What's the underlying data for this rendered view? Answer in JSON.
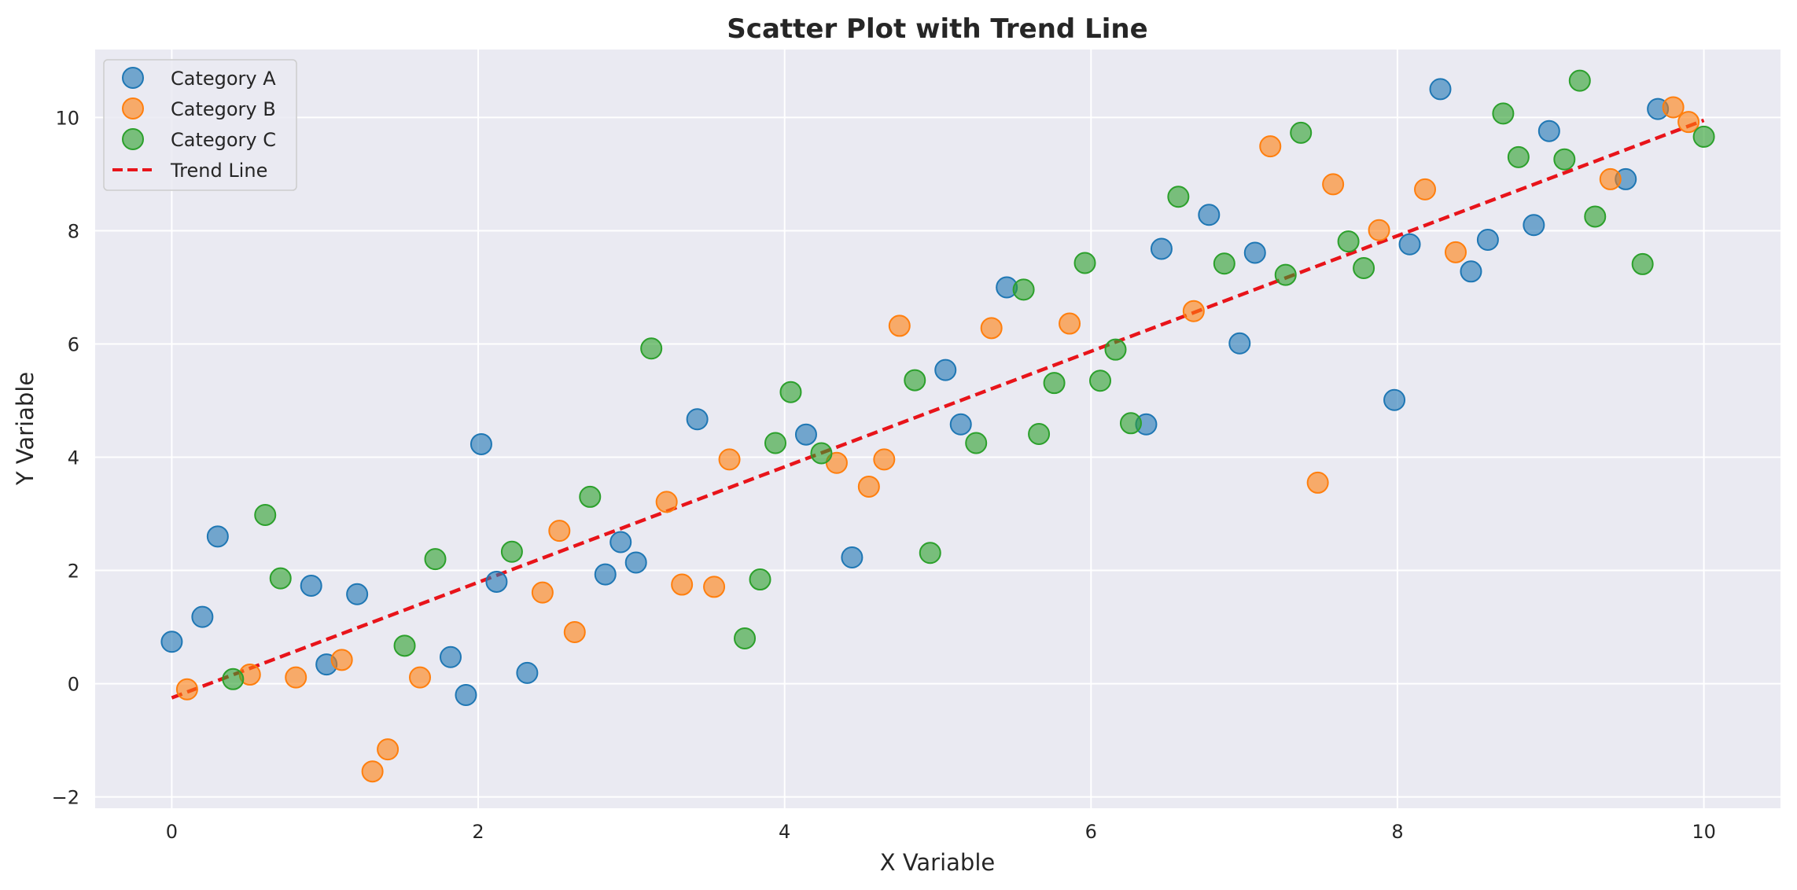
{
  "chart_data": {
    "type": "scatter",
    "title": "Scatter Plot with Trend Line",
    "xlabel": "X Variable",
    "ylabel": "Y Variable",
    "xlim": [
      -0.5,
      10.5
    ],
    "ylim": [
      -2.2,
      11.2
    ],
    "xticks": [
      0,
      2,
      4,
      6,
      8,
      10
    ],
    "yticks": [
      -2,
      0,
      2,
      4,
      6,
      8,
      10
    ],
    "xtick_labels": [
      "0",
      "2",
      "4",
      "6",
      "8",
      "10"
    ],
    "ytick_labels": [
      "−2",
      "0",
      "2",
      "4",
      "6",
      "8",
      "10"
    ],
    "grid": true,
    "legend_position": "top-left",
    "series": [
      {
        "name": "Category A",
        "color": "#1f77b4",
        "x": [
          0.0,
          0.2,
          0.3,
          0.91,
          1.01,
          1.21,
          1.82,
          1.92,
          2.02,
          2.12,
          2.32,
          2.83,
          2.93,
          3.03,
          3.43,
          4.14,
          4.44,
          5.05,
          5.15,
          5.45,
          6.36,
          6.46,
          6.77,
          6.97,
          7.07,
          7.98,
          8.08,
          8.28,
          8.48,
          8.59,
          8.89,
          8.99,
          9.49,
          9.7
        ],
        "y": [
          0.74,
          1.18,
          2.6,
          1.73,
          0.34,
          1.58,
          0.47,
          -0.2,
          4.23,
          1.8,
          0.19,
          1.93,
          2.5,
          2.14,
          4.67,
          4.4,
          2.23,
          5.54,
          4.58,
          7.0,
          4.58,
          7.68,
          8.28,
          6.01,
          7.61,
          5.01,
          7.76,
          10.5,
          7.28,
          7.84,
          8.1,
          9.76,
          8.91,
          10.15
        ]
      },
      {
        "name": "Category B",
        "color": "#ff7f0e",
        "x": [
          0.1,
          0.51,
          0.81,
          1.11,
          1.31,
          1.41,
          1.62,
          2.42,
          2.53,
          2.63,
          3.23,
          3.33,
          3.54,
          3.64,
          4.34,
          4.55,
          4.65,
          4.75,
          5.35,
          5.86,
          6.67,
          7.17,
          7.48,
          7.58,
          7.88,
          8.18,
          8.38,
          9.39,
          9.8,
          9.9
        ],
        "y": [
          -0.1,
          0.16,
          0.11,
          0.42,
          -1.55,
          -1.16,
          0.11,
          1.61,
          2.7,
          0.91,
          3.21,
          1.75,
          1.71,
          3.96,
          3.9,
          3.48,
          3.96,
          6.32,
          6.28,
          6.36,
          6.58,
          9.49,
          3.55,
          8.82,
          8.01,
          8.73,
          7.62,
          8.91,
          10.18,
          9.92
        ]
      },
      {
        "name": "Category C",
        "color": "#2ca02c",
        "x": [
          0.4,
          0.61,
          0.71,
          1.52,
          1.72,
          2.22,
          2.73,
          3.13,
          3.74,
          3.84,
          3.94,
          4.04,
          4.24,
          4.85,
          4.95,
          5.25,
          5.56,
          5.66,
          5.76,
          5.96,
          6.06,
          6.16,
          6.26,
          6.57,
          6.87,
          7.27,
          7.37,
          7.68,
          7.78,
          8.69,
          8.79,
          9.09,
          9.19,
          9.29,
          9.6,
          10.0
        ],
        "y": [
          0.08,
          2.98,
          1.86,
          0.67,
          2.2,
          2.33,
          3.3,
          5.92,
          0.8,
          1.84,
          4.25,
          5.15,
          4.07,
          5.36,
          2.31,
          4.25,
          6.96,
          4.41,
          5.31,
          7.43,
          5.35,
          5.9,
          4.6,
          8.6,
          7.42,
          7.22,
          9.73,
          7.81,
          7.34,
          10.07,
          9.3,
          9.26,
          10.65,
          8.25,
          7.41,
          9.66
        ]
      }
    ],
    "trend_line": {
      "name": "Trend Line",
      "color": "#e8141a",
      "style": "dashed",
      "x": [
        0,
        10
      ],
      "y": [
        -0.25,
        9.95
      ]
    }
  }
}
